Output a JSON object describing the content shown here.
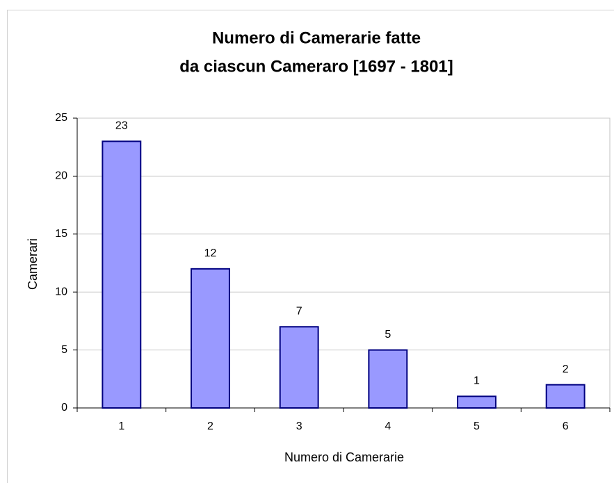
{
  "chart_data": {
    "type": "bar",
    "title": [
      "Numero di Camerarie fatte",
      "da ciascun Cameraro [1697 - 1801]"
    ],
    "x_label": "Numero di Camerarie",
    "y_label": "Camerari",
    "categories": [
      "1",
      "2",
      "3",
      "4",
      "5",
      "6"
    ],
    "values": [
      23,
      12,
      7,
      5,
      1,
      2
    ],
    "color": "#9999ff",
    "edge_color": "#000080",
    "ylim": [
      0,
      25
    ],
    "yticks": [
      0,
      5,
      10,
      15,
      20,
      25
    ],
    "grid": true
  }
}
